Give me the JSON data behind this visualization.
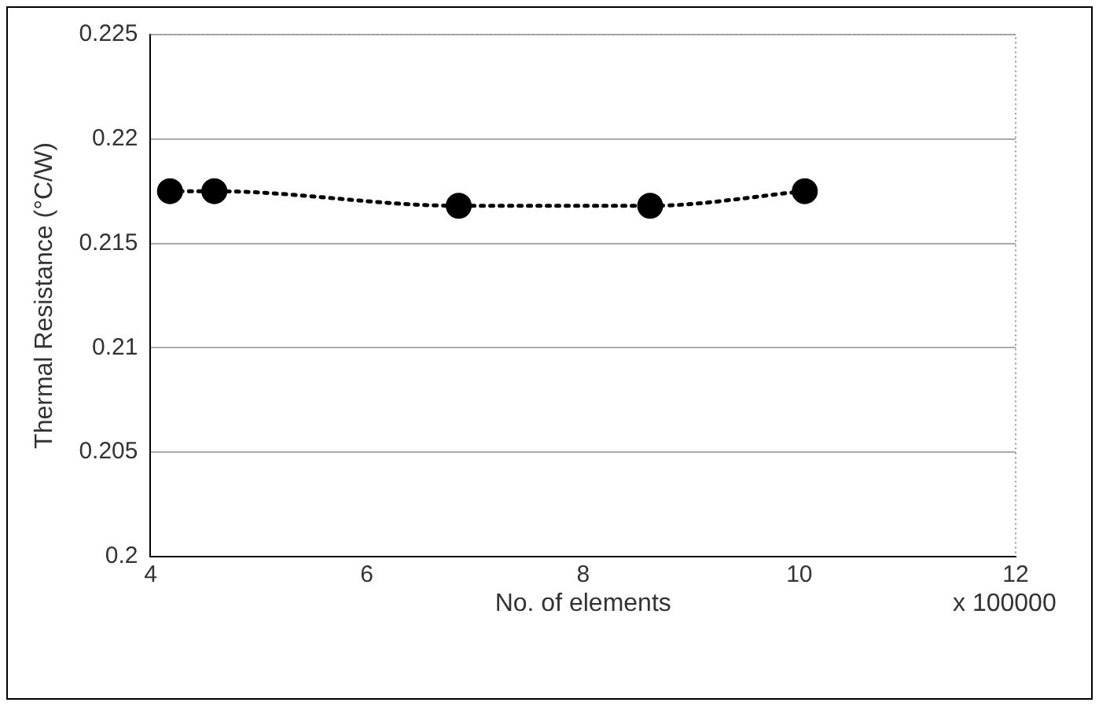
{
  "chart_data": {
    "type": "line",
    "xlabel": "No. of elements",
    "ylabel": "Thermal Resistance (°C/W)",
    "annotations": [
      "x 100000"
    ],
    "x": [
      4.18,
      4.59,
      6.85,
      8.62,
      10.05
    ],
    "series": [
      {
        "color": "#000000",
        "values": [
          0.2175,
          0.2175,
          0.2168,
          0.2168,
          0.2175
        ]
      }
    ],
    "xlim": [
      4,
      12
    ],
    "xticks": [
      4,
      6,
      8,
      10,
      12
    ],
    "ylim": [
      0.2,
      0.225
    ],
    "yticks": [
      0.2,
      0.205,
      0.21,
      0.215,
      0.22,
      0.225
    ],
    "grid": "y",
    "legend": false,
    "marker": "circle",
    "line_style": "dotted"
  }
}
